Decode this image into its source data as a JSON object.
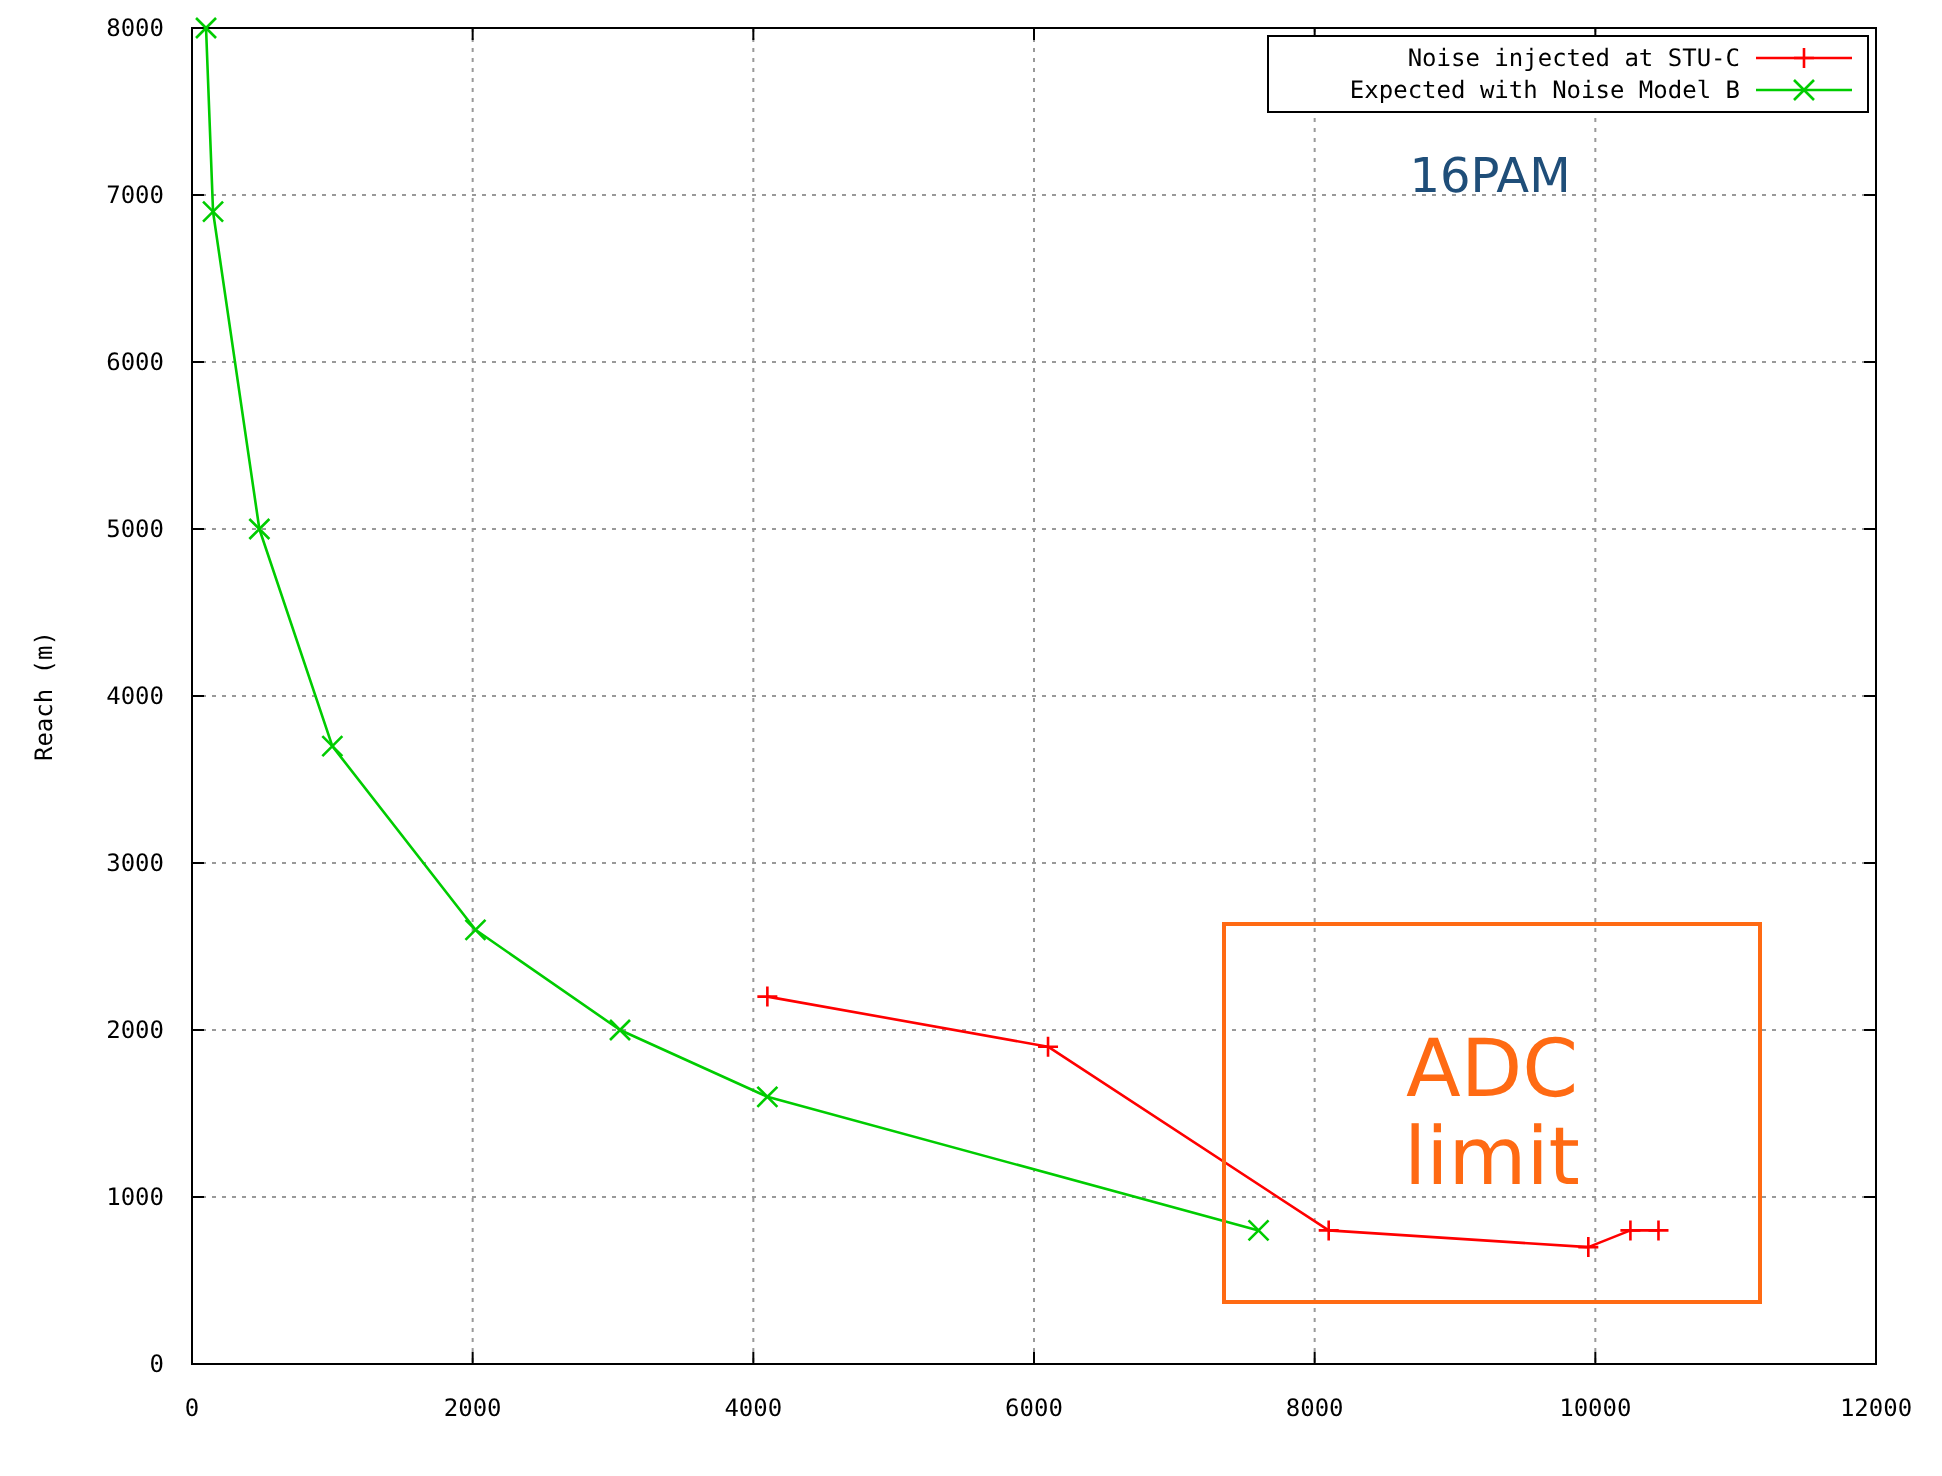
{
  "chart_data": {
    "type": "line",
    "ylabel": "Reach (m)",
    "xlim": [
      0,
      12000
    ],
    "ylim": [
      0,
      8000
    ],
    "xticks": [
      0,
      2000,
      4000,
      6000,
      8000,
      10000,
      12000
    ],
    "yticks": [
      0,
      1000,
      2000,
      3000,
      4000,
      5000,
      6000,
      7000,
      8000
    ],
    "grid": true,
    "legend": "top right",
    "series": [
      {
        "name": "Noise injected at STU-C",
        "color": "#ff0000",
        "marker": "plus",
        "x": [
          4100,
          6100,
          8100,
          9950,
          10250,
          10450
        ],
        "values": [
          2200,
          1900,
          800,
          700,
          800,
          800
        ]
      },
      {
        "name": "Expected with Noise Model B",
        "color": "#00cc00",
        "marker": "cross",
        "x": [
          100,
          150,
          480,
          1000,
          2020,
          3050,
          4100,
          7600
        ],
        "values": [
          8000,
          6900,
          5000,
          3700,
          2600,
          2000,
          1600,
          800
        ]
      }
    ],
    "annotations": [
      "16PAM",
      "ADC limit"
    ]
  }
}
